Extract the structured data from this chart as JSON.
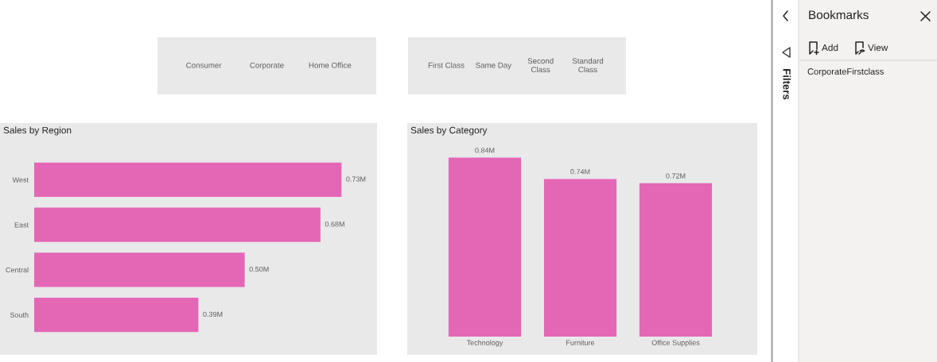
{
  "chart_data": [
    {
      "type": "other",
      "categories": [
        "Consumer",
        "Corporate",
        "Home Office"
      ]
    },
    {
      "type": "other",
      "categories": [
        "First Class",
        "Same Day",
        "Second Class",
        "Standard Class"
      ]
    },
    {
      "type": "bar",
      "title": "Sales by Region",
      "orientation": "horizontal",
      "categories": [
        "West",
        "East",
        "Central",
        "South"
      ],
      "values": [
        0.73,
        0.68,
        0.5,
        0.39
      ],
      "value_labels": [
        "0.73M",
        "0.68M",
        "0.50M",
        "0.39M"
      ],
      "color": "#e467b6",
      "tick_labels": "y"
    },
    {
      "type": "bar",
      "title": "Sales by Category",
      "categories": [
        "Technology",
        "Furniture",
        "Office Supplies"
      ],
      "values": [
        0.84,
        0.74,
        0.72
      ],
      "value_labels": [
        "0.84M",
        "0.74M",
        "0.72M"
      ],
      "color": "#e467b6",
      "tick_labels": "x"
    },
    {
      "type": "other",
      "title": "Bookmarks",
      "annotations": [
        "Add",
        "View",
        "CorporateFirstclass",
        "Filters"
      ]
    }
  ]
}
